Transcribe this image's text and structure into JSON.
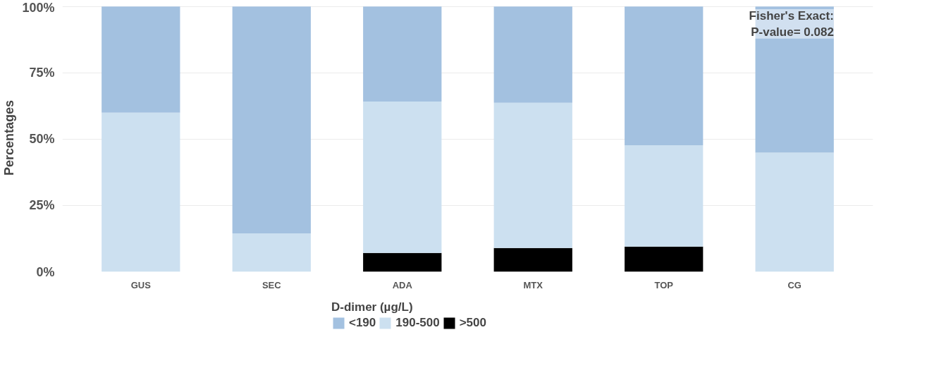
{
  "chart_data": {
    "type": "bar",
    "stacked": true,
    "categories": [
      "GUS",
      "SEC",
      "ADA",
      "MTX",
      "TOP",
      "CG"
    ],
    "series": [
      {
        "name": ">500",
        "color": "#000000",
        "values": [
          0,
          0,
          7.1,
          9.0,
          9.5,
          0
        ]
      },
      {
        "name": "190-500",
        "color": "#cce0f0",
        "values": [
          60,
          14.5,
          57.1,
          54.7,
          38.2,
          44.9
        ]
      },
      {
        "name": "<190",
        "color": "#a3c1e0",
        "values": [
          40,
          85.5,
          35.8,
          36.3,
          52.3,
          55.1
        ]
      }
    ],
    "ylabel": "Percentages",
    "legend_title": "D-dimer (µg/L)",
    "ylim": [
      0,
      100
    ],
    "yticks": [
      {
        "value": 0,
        "label": "0%"
      },
      {
        "value": 25,
        "label": "25%"
      },
      {
        "value": 50,
        "label": "50%"
      },
      {
        "value": 75,
        "label": "75%"
      },
      {
        "value": 100,
        "label": "100%"
      }
    ],
    "annotations": [
      "Fisher's Exact:\nP-value= 0.082"
    ],
    "grid": "y",
    "legend": "bottom"
  }
}
